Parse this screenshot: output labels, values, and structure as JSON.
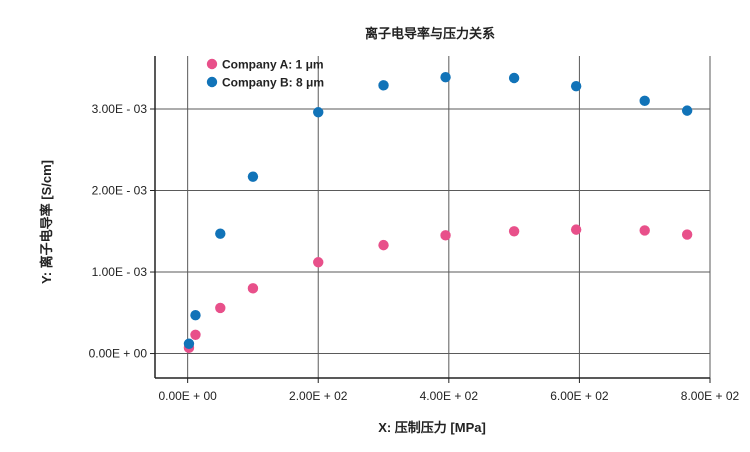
{
  "chart_data": {
    "type": "scatter",
    "title": "离子电导率与压力关系",
    "xlabel": "X: 压制压力 [MPa]",
    "ylabel": "Y: 离子电导率 [S/cm]",
    "xlim": [
      -50,
      800
    ],
    "ylim": [
      -0.0003,
      0.00365
    ],
    "xticks": [
      0,
      200,
      400,
      600,
      800
    ],
    "xtick_labels": [
      "0.00E + 00",
      "2.00E + 02",
      "4.00E + 02",
      "6.00E + 02",
      "8.00E + 02"
    ],
    "yticks": [
      0,
      0.001,
      0.002,
      0.003
    ],
    "ytick_labels": [
      "0.00E + 00",
      "1.00E - 03",
      "2.00E - 03",
      "3.00E - 03"
    ],
    "grid": true,
    "legend_position": "top-left",
    "series": [
      {
        "name": "Company A: 1 μm",
        "color": "#e8508a",
        "x": [
          2,
          12,
          50,
          100,
          200,
          300,
          395,
          500,
          595,
          700,
          765
        ],
        "y": [
          7e-05,
          0.00023,
          0.00056,
          0.0008,
          0.00112,
          0.00133,
          0.00145,
          0.0015,
          0.00152,
          0.00151,
          0.00146
        ]
      },
      {
        "name": "Company B: 8 μm",
        "color": "#1173b8",
        "x": [
          2,
          12,
          50,
          100,
          200,
          300,
          395,
          500,
          595,
          700,
          765
        ],
        "y": [
          0.00012,
          0.00047,
          0.00147,
          0.00217,
          0.00296,
          0.00329,
          0.00339,
          0.00338,
          0.00328,
          0.0031,
          0.00298
        ]
      }
    ]
  }
}
